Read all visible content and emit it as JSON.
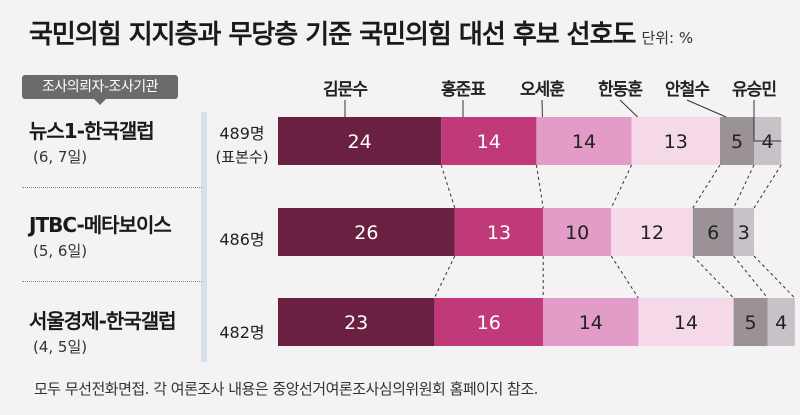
{
  "title": "국민의힘 지지층과 무당층 기준 국민의힘 대선 후보 선호도",
  "unit": "단위: %",
  "header_badge": "조사의뢰자-조사기관",
  "footnote": "모두 무선전화면접. 각 여론조사 내용은 중앙선거여론조사심의위원회 홈페이지 참조.",
  "colors": [
    "#6a2040",
    "#c03a7a",
    "#e39bc8",
    "#f6d9e9",
    "#9a9296",
    "#c9c1c8"
  ],
  "chart_data": {
    "type": "bar",
    "orientation": "horizontal",
    "stacked": true,
    "categories": [
      "김문수",
      "홍준표",
      "오세훈",
      "한동훈",
      "안철수",
      "유승민"
    ],
    "polls": [
      {
        "institution": "뉴스1-한국갤럽",
        "dates": "(6, 7일)",
        "sample": "489명",
        "sample_note": "(표본수)",
        "values": [
          24,
          14,
          14,
          13,
          5,
          4
        ]
      },
      {
        "institution": "JTBC-메타보이스",
        "dates": "(5, 6일)",
        "sample": "486명",
        "sample_note": "",
        "values": [
          26,
          13,
          10,
          12,
          6,
          3
        ]
      },
      {
        "institution": "서울경제-한국갤럽",
        "dates": "(4, 5일)",
        "sample": "482명",
        "sample_note": "",
        "values": [
          23,
          16,
          14,
          14,
          5,
          4
        ]
      }
    ],
    "xlim": [
      0,
      74
    ]
  }
}
